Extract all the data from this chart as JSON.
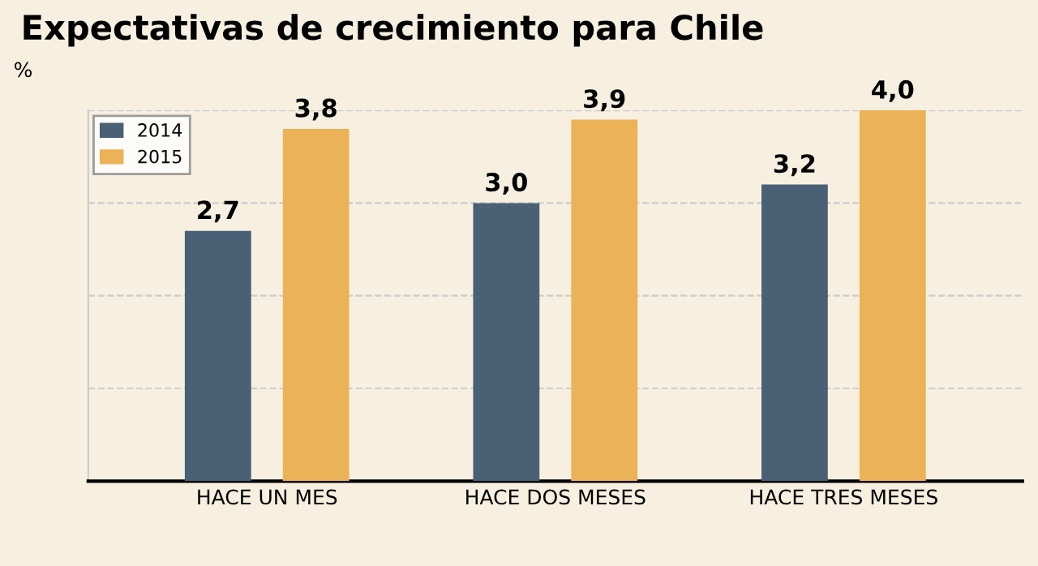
{
  "chart_data": {
    "type": "bar",
    "title": "Expectativas de crecimiento para Chile",
    "ylabel": "%",
    "categories": [
      "HACE UN MES",
      "HACE DOS MESES",
      "HACE TRES MESES"
    ],
    "series": [
      {
        "name": "2014",
        "color": "#4a6075",
        "values": [
          2.7,
          3.0,
          3.2
        ],
        "value_labels": [
          "2,7",
          "3,0",
          "3,2"
        ]
      },
      {
        "name": "2015",
        "color": "#ecb257",
        "values": [
          3.8,
          3.9,
          4.0
        ],
        "value_labels": [
          "3,8",
          "3,9",
          "4,0"
        ]
      }
    ],
    "ylim": [
      0,
      4
    ],
    "yticks": [
      {
        "value": 1,
        "label": null
      },
      {
        "value": 2,
        "label": null
      },
      {
        "value": 3,
        "label": null
      },
      {
        "value": 4,
        "label": null
      }
    ],
    "grid": "y",
    "legend": "top left",
    "tick_labels": "x"
  }
}
